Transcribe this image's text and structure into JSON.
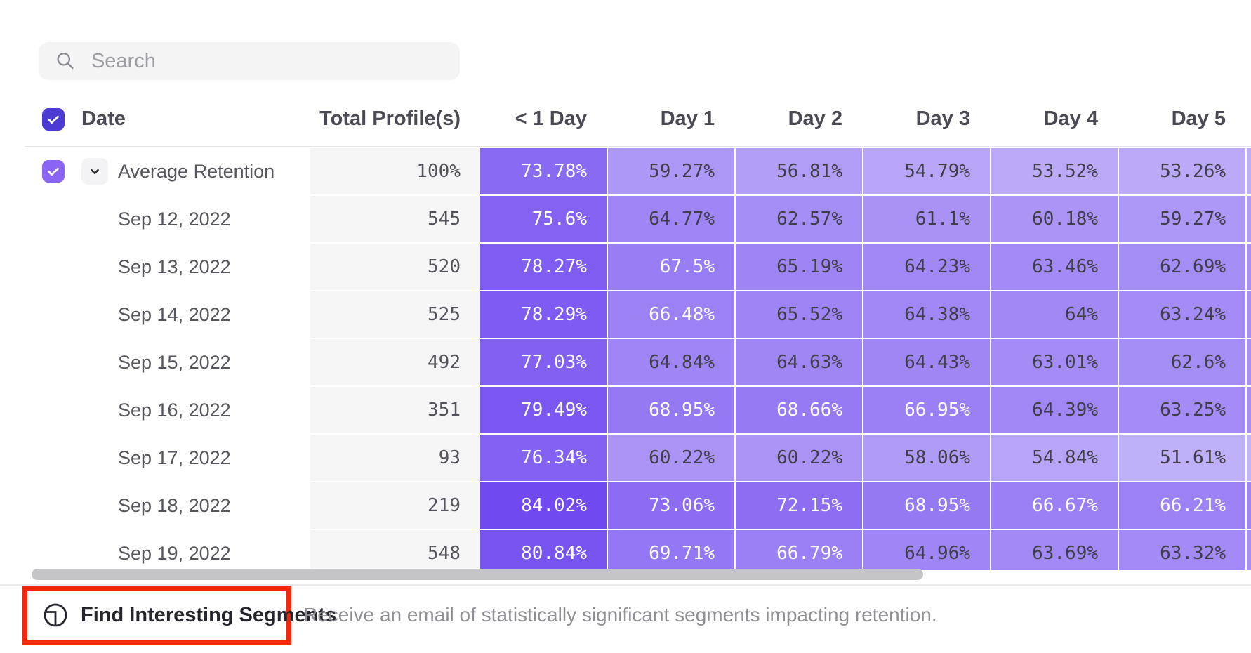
{
  "search": {
    "placeholder": "Search"
  },
  "table": {
    "columns": [
      "Date",
      "Total Profile(s)",
      "< 1 Day",
      "Day 1",
      "Day 2",
      "Day 3",
      "Day 4",
      "Day 5"
    ],
    "rows": [
      {
        "label": "Average Retention",
        "is_summary": true,
        "total": "100%",
        "values": [
          "73.78%",
          "59.27%",
          "56.81%",
          "54.79%",
          "53.52%",
          "53.26%"
        ]
      },
      {
        "label": "Sep 12, 2022",
        "is_summary": false,
        "total": "545",
        "values": [
          "75.6%",
          "64.77%",
          "62.57%",
          "61.1%",
          "60.18%",
          "59.27%"
        ]
      },
      {
        "label": "Sep 13, 2022",
        "is_summary": false,
        "total": "520",
        "values": [
          "78.27%",
          "67.5%",
          "65.19%",
          "64.23%",
          "63.46%",
          "62.69%"
        ]
      },
      {
        "label": "Sep 14, 2022",
        "is_summary": false,
        "total": "525",
        "values": [
          "78.29%",
          "66.48%",
          "65.52%",
          "64.38%",
          "64%",
          "63.24%"
        ]
      },
      {
        "label": "Sep 15, 2022",
        "is_summary": false,
        "total": "492",
        "values": [
          "77.03%",
          "64.84%",
          "64.63%",
          "64.43%",
          "63.01%",
          "62.6%"
        ]
      },
      {
        "label": "Sep 16, 2022",
        "is_summary": false,
        "total": "351",
        "values": [
          "79.49%",
          "68.95%",
          "68.66%",
          "66.95%",
          "64.39%",
          "63.25%"
        ]
      },
      {
        "label": "Sep 17, 2022",
        "is_summary": false,
        "total": "93",
        "values": [
          "76.34%",
          "60.22%",
          "60.22%",
          "58.06%",
          "54.84%",
          "51.61%"
        ]
      },
      {
        "label": "Sep 18, 2022",
        "is_summary": false,
        "total": "219",
        "values": [
          "84.02%",
          "73.06%",
          "72.15%",
          "68.95%",
          "66.67%",
          "66.21%"
        ]
      },
      {
        "label": "Sep 19, 2022",
        "is_summary": false,
        "total": "548",
        "values": [
          "80.84%",
          "69.71%",
          "66.79%",
          "64.96%",
          "63.69%",
          "63.32%"
        ]
      }
    ]
  },
  "footer": {
    "button_label": "Find Interesting Segments",
    "description": "Receive an email of statistically significant segments impacting retention."
  },
  "colors": {
    "header_checkbox": "#4c3ad4",
    "row_checkbox": "#8a64f4",
    "cell_base_rgb": [
      70,
      20,
      236
    ],
    "cell_dark_text": "#403e48",
    "cell_light_text": "#ffffff",
    "highlight_red": "#f3270b",
    "scrollbar": "#c5c5c7",
    "total_col_bg": "#f5f5f6"
  }
}
